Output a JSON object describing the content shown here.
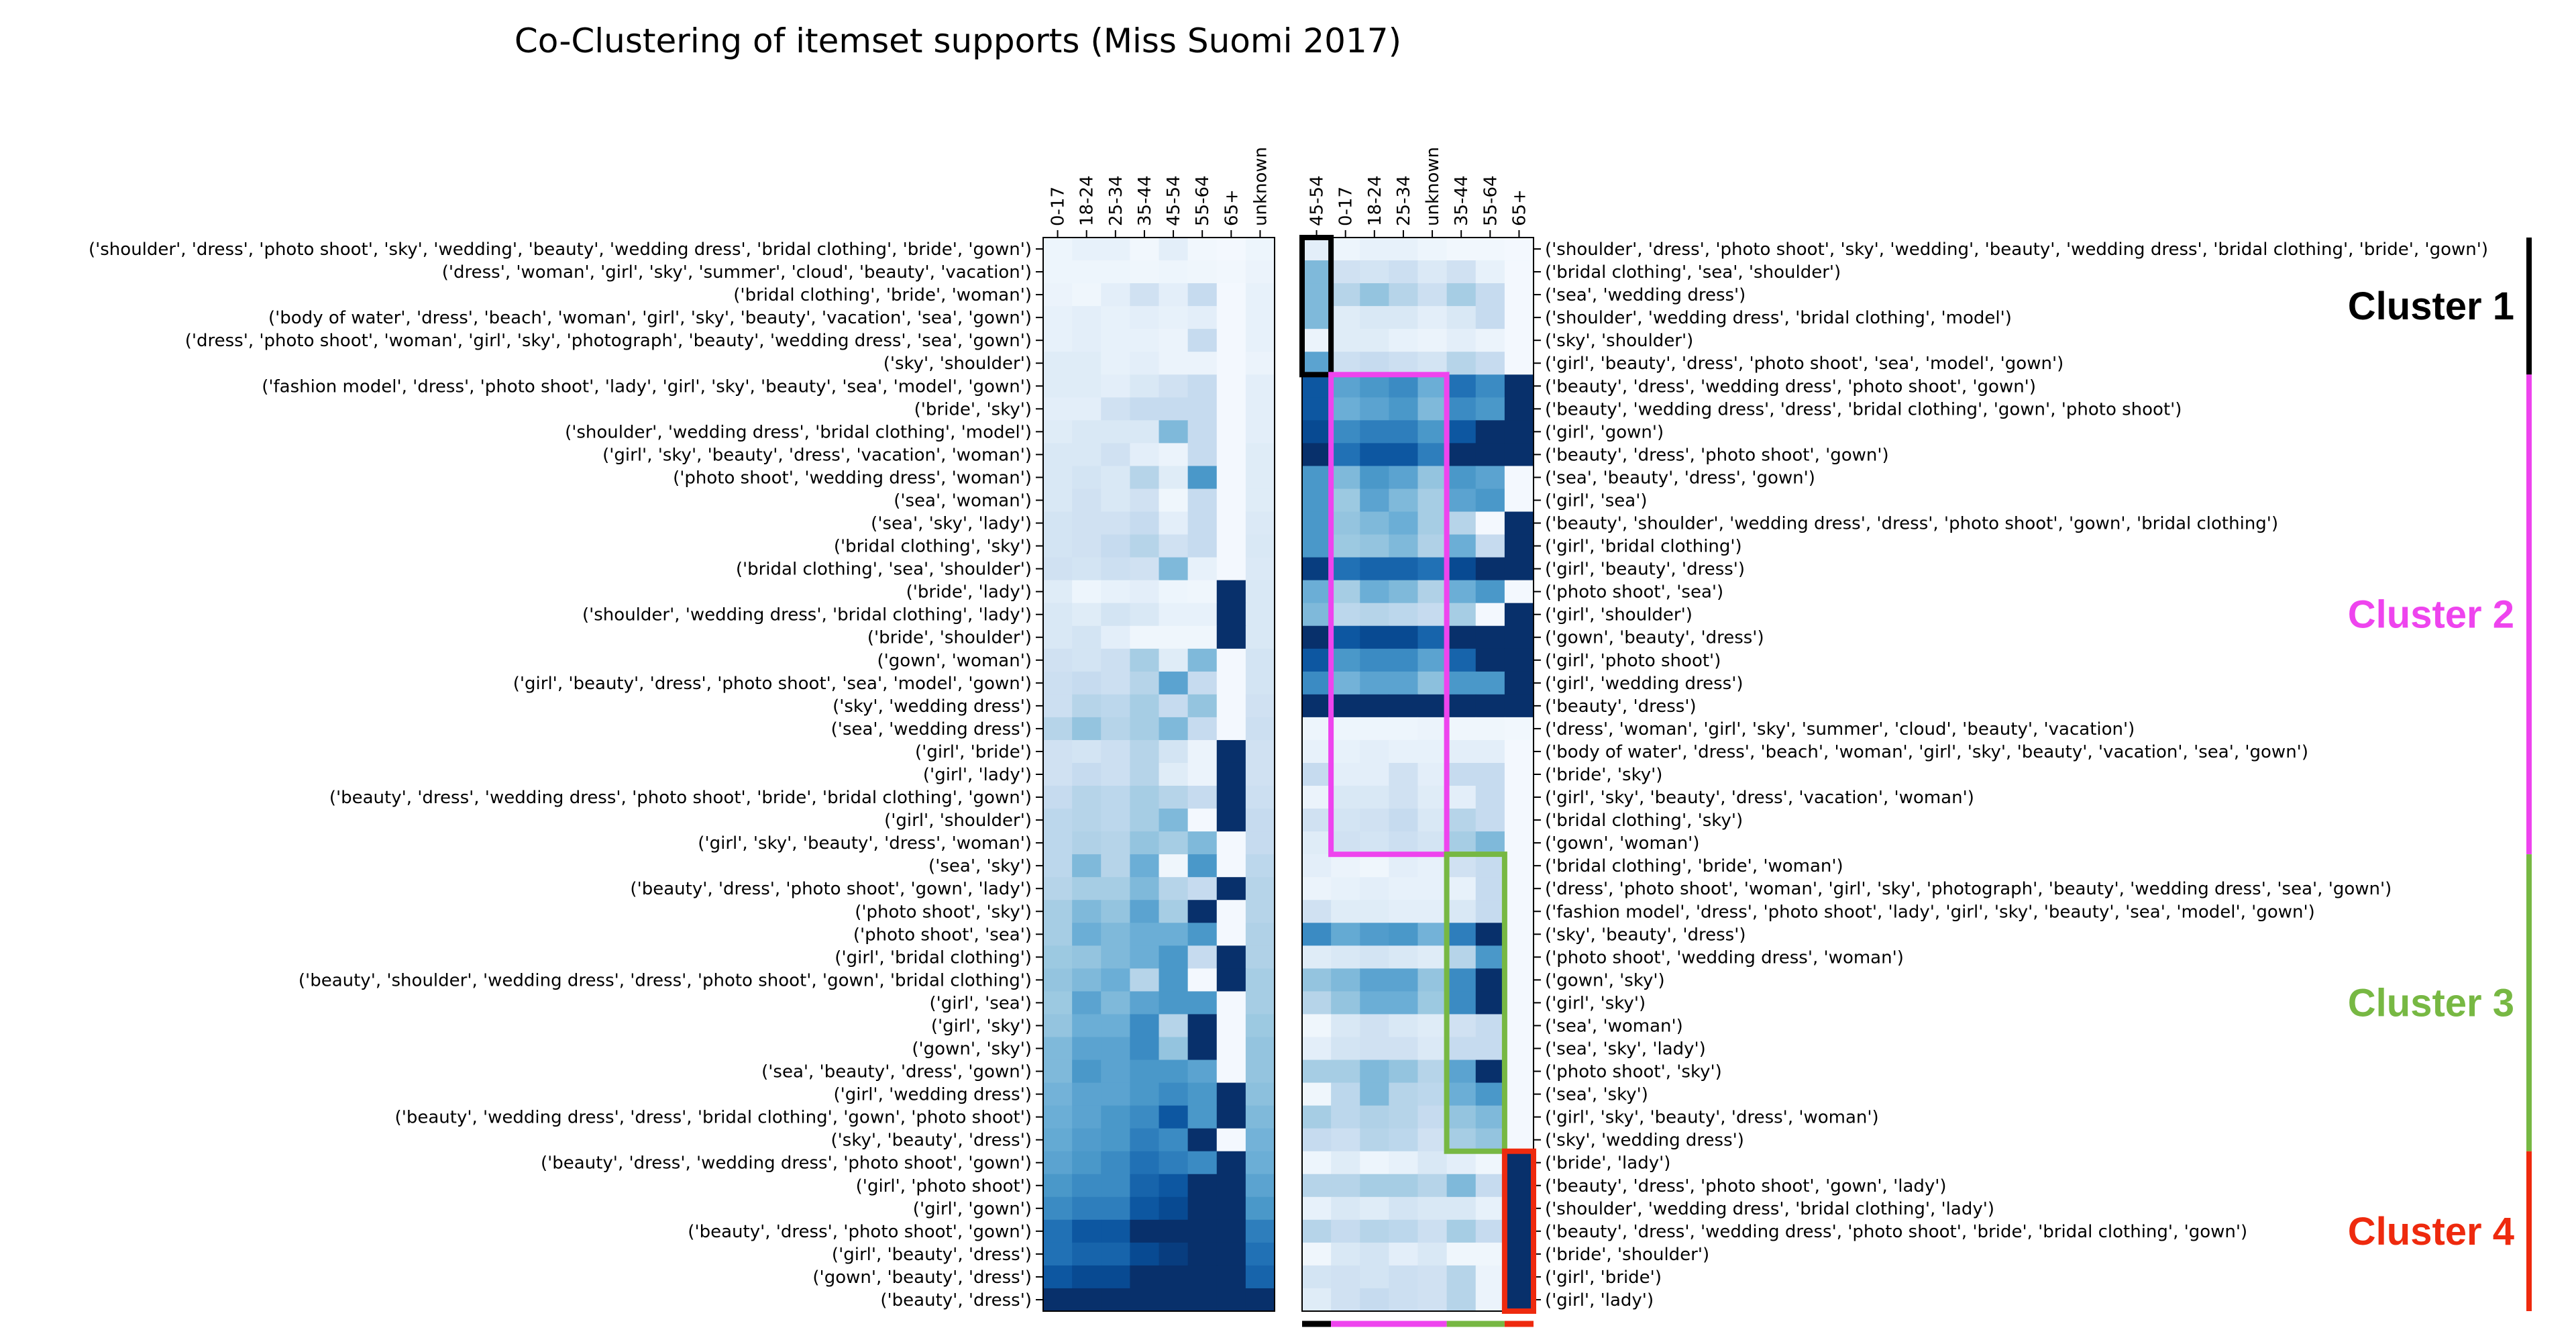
{
  "chart_data": {
    "type": "heatmap",
    "title": "Co-Clustering of itemset supports (Miss Suomi 2017)",
    "colormap": "Blues",
    "value_range": [
      0,
      1
    ],
    "left": {
      "columns": [
        "0-17",
        "18-24",
        "25-34",
        "35-44",
        "45-54",
        "55-64",
        "65+",
        "unknown"
      ],
      "rows": [
        "('shoulder', 'dress', 'photo shoot', 'sky', 'wedding', 'beauty', 'wedding dress', 'bridal clothing', 'bride', 'gown')",
        "('dress', 'woman', 'girl', 'sky', 'summer', 'cloud', 'beauty', 'vacation')",
        "('bridal clothing', 'bride', 'woman')",
        "('body of water', 'dress', 'beach', 'woman', 'girl', 'sky', 'beauty', 'vacation', 'sea', 'gown')",
        "('dress', 'photo shoot', 'woman', 'girl', 'sky', 'photograph', 'beauty', 'wedding dress', 'sea', 'gown')",
        "('sky', 'shoulder')",
        "('fashion model', 'dress', 'photo shoot', 'lady', 'girl', 'sky', 'beauty', 'sea', 'model', 'gown')",
        "('bride', 'sky')",
        "('shoulder', 'wedding dress', 'bridal clothing', 'model')",
        "('girl', 'sky', 'beauty', 'dress', 'vacation', 'woman')",
        "('photo shoot', 'wedding dress', 'woman')",
        "('sea', 'woman')",
        "('sea', 'sky', 'lady')",
        "('bridal clothing', 'sky')",
        "('bridal clothing', 'sea', 'shoulder')",
        "('bride', 'lady')",
        "('shoulder', 'wedding dress', 'bridal clothing', 'lady')",
        "('bride', 'shoulder')",
        "('gown', 'woman')",
        "('girl', 'beauty', 'dress', 'photo shoot', 'sea', 'model', 'gown')",
        "('sky', 'wedding dress')",
        "('sea', 'wedding dress')",
        "('girl', 'bride')",
        "('girl', 'lady')",
        "('beauty', 'dress', 'wedding dress', 'photo shoot', 'bride', 'bridal clothing', 'gown')",
        "('girl', 'shoulder')",
        "('girl', 'sky', 'beauty', 'dress', 'woman')",
        "('sea', 'sky')",
        "('beauty', 'dress', 'photo shoot', 'gown', 'lady')",
        "('photo shoot', 'sky')",
        "('photo shoot', 'sea')",
        "('girl', 'bridal clothing')",
        "('beauty', 'shoulder', 'wedding dress', 'dress', 'photo shoot', 'gown', 'bridal clothing')",
        "('girl', 'sea')",
        "('girl', 'sky')",
        "('gown', 'sky')",
        "('sea', 'beauty', 'dress', 'gown')",
        "('girl', 'wedding dress')",
        "('beauty', 'wedding dress', 'dress', 'bridal clothing', 'gown', 'photo shoot')",
        "('sky', 'beauty', 'dress')",
        "('beauty', 'dress', 'wedding dress', 'photo shoot', 'gown')",
        "('girl', 'photo shoot')",
        "('girl', 'gown')",
        "('beauty', 'dress', 'photo shoot', 'gown')",
        "('girl', 'beauty', 'dress')",
        "('gown', 'beauty', 'dress')",
        "('beauty', 'dress')"
      ],
      "values": [
        [
          0.05,
          0.08,
          0.08,
          0.03,
          0.1,
          0.03,
          0.02,
          0.05
        ],
        [
          0.05,
          0.05,
          0.05,
          0.04,
          0.05,
          0.04,
          0.03,
          0.06
        ],
        [
          0.06,
          0.04,
          0.1,
          0.2,
          0.1,
          0.25,
          0.02,
          0.08
        ],
        [
          0.08,
          0.1,
          0.08,
          0.1,
          0.08,
          0.1,
          0.02,
          0.08
        ],
        [
          0.08,
          0.1,
          0.08,
          0.08,
          0.06,
          0.25,
          0.02,
          0.08
        ],
        [
          0.12,
          0.12,
          0.08,
          0.1,
          0.06,
          0.06,
          0.02,
          0.06
        ],
        [
          0.12,
          0.12,
          0.1,
          0.15,
          0.2,
          0.25,
          0.02,
          0.1
        ],
        [
          0.1,
          0.1,
          0.2,
          0.25,
          0.25,
          0.25,
          0.02,
          0.1
        ],
        [
          0.12,
          0.15,
          0.15,
          0.15,
          0.45,
          0.25,
          0.02,
          0.1
        ],
        [
          0.15,
          0.15,
          0.2,
          0.1,
          0.06,
          0.25,
          0.02,
          0.12
        ],
        [
          0.15,
          0.18,
          0.15,
          0.3,
          0.12,
          0.6,
          0.02,
          0.12
        ],
        [
          0.15,
          0.2,
          0.15,
          0.2,
          0.04,
          0.25,
          0.02,
          0.12
        ],
        [
          0.18,
          0.2,
          0.2,
          0.25,
          0.1,
          0.25,
          0.02,
          0.14
        ],
        [
          0.18,
          0.2,
          0.25,
          0.3,
          0.2,
          0.25,
          0.02,
          0.15
        ],
        [
          0.2,
          0.18,
          0.22,
          0.2,
          0.45,
          0.08,
          0.02,
          0.14
        ],
        [
          0.12,
          0.05,
          0.08,
          0.1,
          0.05,
          0.04,
          1.0,
          0.15
        ],
        [
          0.15,
          0.12,
          0.18,
          0.15,
          0.08,
          0.08,
          1.0,
          0.15
        ],
        [
          0.15,
          0.18,
          0.1,
          0.04,
          0.04,
          0.04,
          1.0,
          0.15
        ],
        [
          0.2,
          0.18,
          0.22,
          0.35,
          0.12,
          0.45,
          0.02,
          0.18
        ],
        [
          0.22,
          0.25,
          0.22,
          0.3,
          0.55,
          0.25,
          0.02,
          0.18
        ],
        [
          0.22,
          0.3,
          0.28,
          0.35,
          0.25,
          0.4,
          0.02,
          0.2
        ],
        [
          0.3,
          0.4,
          0.3,
          0.35,
          0.45,
          0.25,
          0.02,
          0.22
        ],
        [
          0.2,
          0.18,
          0.22,
          0.3,
          0.18,
          0.06,
          1.0,
          0.2
        ],
        [
          0.2,
          0.25,
          0.22,
          0.3,
          0.12,
          0.06,
          1.0,
          0.2
        ],
        [
          0.25,
          0.3,
          0.28,
          0.35,
          0.3,
          0.25,
          1.0,
          0.22
        ],
        [
          0.28,
          0.3,
          0.28,
          0.35,
          0.45,
          0.02,
          1.0,
          0.25
        ],
        [
          0.28,
          0.32,
          0.3,
          0.4,
          0.35,
          0.45,
          0.02,
          0.25
        ],
        [
          0.28,
          0.45,
          0.3,
          0.5,
          0.04,
          0.6,
          0.02,
          0.28
        ],
        [
          0.3,
          0.35,
          0.35,
          0.45,
          0.3,
          0.25,
          1.0,
          0.3
        ],
        [
          0.35,
          0.45,
          0.4,
          0.55,
          0.35,
          1.0,
          0.02,
          0.3
        ],
        [
          0.35,
          0.5,
          0.45,
          0.5,
          0.5,
          0.6,
          0.02,
          0.32
        ],
        [
          0.38,
          0.4,
          0.45,
          0.5,
          0.6,
          0.25,
          1.0,
          0.32
        ],
        [
          0.4,
          0.45,
          0.5,
          0.3,
          0.6,
          0.02,
          1.0,
          0.35
        ],
        [
          0.38,
          0.55,
          0.45,
          0.55,
          0.6,
          0.6,
          0.02,
          0.35
        ],
        [
          0.4,
          0.5,
          0.5,
          0.65,
          0.3,
          1.0,
          0.02,
          0.38
        ],
        [
          0.45,
          0.55,
          0.55,
          0.65,
          0.4,
          1.0,
          0.02,
          0.4
        ],
        [
          0.45,
          0.6,
          0.55,
          0.6,
          0.6,
          0.55,
          0.02,
          0.4
        ],
        [
          0.48,
          0.55,
          0.55,
          0.6,
          0.65,
          0.6,
          1.0,
          0.42
        ],
        [
          0.5,
          0.55,
          0.6,
          0.65,
          0.85,
          0.6,
          1.0,
          0.45
        ],
        [
          0.52,
          0.58,
          0.6,
          0.7,
          0.65,
          1.0,
          0.02,
          0.48
        ],
        [
          0.55,
          0.6,
          0.65,
          0.75,
          0.7,
          0.65,
          1.0,
          0.5
        ],
        [
          0.6,
          0.65,
          0.65,
          0.8,
          0.85,
          1.0,
          1.0,
          0.55
        ],
        [
          0.65,
          0.7,
          0.7,
          0.85,
          0.9,
          1.0,
          1.0,
          0.6
        ],
        [
          0.75,
          0.85,
          0.85,
          1.0,
          1.0,
          1.0,
          1.0,
          0.7
        ],
        [
          0.75,
          0.8,
          0.8,
          0.9,
          0.95,
          1.0,
          1.0,
          0.75
        ],
        [
          0.85,
          0.9,
          0.9,
          1.0,
          1.0,
          1.0,
          1.0,
          0.8
        ],
        [
          1.0,
          1.0,
          1.0,
          1.0,
          1.0,
          1.0,
          1.0,
          1.0
        ]
      ]
    },
    "right": {
      "columns": [
        "45-54",
        "0-17",
        "18-24",
        "25-34",
        "unknown",
        "35-44",
        "55-64",
        "65+"
      ],
      "rows": [
        "('shoulder', 'dress', 'photo shoot', 'sky', 'wedding', 'beauty', 'wedding dress', 'bridal clothing', 'bride', 'gown')",
        "('bridal clothing', 'sea', 'shoulder')",
        "('sea', 'wedding dress')",
        "('shoulder', 'wedding dress', 'bridal clothing', 'model')",
        "('sky', 'shoulder')",
        "('girl', 'beauty', 'dress', 'photo shoot', 'sea', 'model', 'gown')",
        "('beauty', 'dress', 'wedding dress', 'photo shoot', 'gown')",
        "('beauty', 'wedding dress', 'dress', 'bridal clothing', 'gown', 'photo shoot')",
        "('girl', 'gown')",
        "('beauty', 'dress', 'photo shoot', 'gown')",
        "('sea', 'beauty', 'dress', 'gown')",
        "('girl', 'sea')",
        "('beauty', 'shoulder', 'wedding dress', 'dress', 'photo shoot', 'gown', 'bridal clothing')",
        "('girl', 'bridal clothing')",
        "('girl', 'beauty', 'dress')",
        "('photo shoot', 'sea')",
        "('girl', 'shoulder')",
        "('gown', 'beauty', 'dress')",
        "('girl', 'photo shoot')",
        "('girl', 'wedding dress')",
        "('beauty', 'dress')",
        "('dress', 'woman', 'girl', 'sky', 'summer', 'cloud', 'beauty', 'vacation')",
        "('body of water', 'dress', 'beach', 'woman', 'girl', 'sky', 'beauty', 'vacation', 'sea', 'gown')",
        "('bride', 'sky')",
        "('girl', 'sky', 'beauty', 'dress', 'vacation', 'woman')",
        "('bridal clothing', 'sky')",
        "('gown', 'woman')",
        "('bridal clothing', 'bride', 'woman')",
        "('dress', 'photo shoot', 'woman', 'girl', 'sky', 'photograph', 'beauty', 'wedding dress', 'sea', 'gown')",
        "('fashion model', 'dress', 'photo shoot', 'lady', 'girl', 'sky', 'beauty', 'sea', 'model', 'gown')",
        "('sky', 'beauty', 'dress')",
        "('photo shoot', 'wedding dress', 'woman')",
        "('gown', 'sky')",
        "('girl', 'sky')",
        "('sea', 'woman')",
        "('sea', 'sky', 'lady')",
        "('photo shoot', 'sky')",
        "('sea', 'sky')",
        "('girl', 'sky', 'beauty', 'dress', 'woman')",
        "('sky', 'wedding dress')",
        "('bride', 'lady')",
        "('beauty', 'dress', 'photo shoot', 'gown', 'lady')",
        "('shoulder', 'wedding dress', 'bridal clothing', 'lady')",
        "('beauty', 'dress', 'wedding dress', 'photo shoot', 'bride', 'bridal clothing', 'gown')",
        "('bride', 'shoulder')",
        "('girl', 'bride')",
        "('girl', 'lady')"
      ],
      "values": [
        [
          0.1,
          0.05,
          0.08,
          0.08,
          0.05,
          0.03,
          0.03,
          0.02
        ],
        [
          0.45,
          0.2,
          0.18,
          0.22,
          0.14,
          0.2,
          0.08,
          0.02
        ],
        [
          0.45,
          0.3,
          0.4,
          0.3,
          0.22,
          0.35,
          0.25,
          0.02
        ],
        [
          0.45,
          0.12,
          0.15,
          0.15,
          0.1,
          0.15,
          0.25,
          0.02
        ],
        [
          0.06,
          0.12,
          0.12,
          0.08,
          0.06,
          0.1,
          0.06,
          0.02
        ],
        [
          0.55,
          0.22,
          0.25,
          0.22,
          0.18,
          0.3,
          0.25,
          0.02
        ],
        [
          0.85,
          0.55,
          0.6,
          0.65,
          0.5,
          0.75,
          0.65,
          1.0
        ],
        [
          0.85,
          0.5,
          0.55,
          0.6,
          0.45,
          0.65,
          0.6,
          1.0
        ],
        [
          0.9,
          0.65,
          0.7,
          0.7,
          0.6,
          0.85,
          1.0,
          1.0
        ],
        [
          1.0,
          0.75,
          0.85,
          0.85,
          0.7,
          1.0,
          1.0,
          1.0
        ],
        [
          0.6,
          0.45,
          0.6,
          0.55,
          0.4,
          0.6,
          0.55,
          0.02
        ],
        [
          0.6,
          0.38,
          0.55,
          0.45,
          0.35,
          0.55,
          0.6,
          0.02
        ],
        [
          0.6,
          0.4,
          0.45,
          0.5,
          0.35,
          0.3,
          0.02,
          1.0
        ],
        [
          0.6,
          0.38,
          0.4,
          0.45,
          0.32,
          0.5,
          0.25,
          1.0
        ],
        [
          0.95,
          0.75,
          0.8,
          0.8,
          0.75,
          0.9,
          1.0,
          1.0
        ],
        [
          0.5,
          0.35,
          0.5,
          0.45,
          0.32,
          0.5,
          0.6,
          0.02
        ],
        [
          0.45,
          0.28,
          0.3,
          0.28,
          0.25,
          0.35,
          0.02,
          1.0
        ],
        [
          1.0,
          0.85,
          0.9,
          0.9,
          0.8,
          1.0,
          1.0,
          1.0
        ],
        [
          0.85,
          0.6,
          0.65,
          0.65,
          0.55,
          0.8,
          1.0,
          1.0
        ],
        [
          0.65,
          0.48,
          0.55,
          0.55,
          0.42,
          0.6,
          0.6,
          1.0
        ],
        [
          1.0,
          1.0,
          1.0,
          1.0,
          1.0,
          1.0,
          1.0,
          1.0
        ],
        [
          0.05,
          0.05,
          0.05,
          0.05,
          0.06,
          0.04,
          0.04,
          0.03
        ],
        [
          0.08,
          0.08,
          0.1,
          0.08,
          0.08,
          0.1,
          0.1,
          0.02
        ],
        [
          0.25,
          0.1,
          0.1,
          0.2,
          0.1,
          0.25,
          0.25,
          0.02
        ],
        [
          0.06,
          0.15,
          0.15,
          0.2,
          0.12,
          0.1,
          0.25,
          0.02
        ],
        [
          0.2,
          0.18,
          0.2,
          0.25,
          0.15,
          0.3,
          0.25,
          0.02
        ],
        [
          0.12,
          0.2,
          0.18,
          0.22,
          0.18,
          0.35,
          0.45,
          0.02
        ],
        [
          0.1,
          0.06,
          0.04,
          0.1,
          0.08,
          0.2,
          0.25,
          0.02
        ],
        [
          0.06,
          0.08,
          0.1,
          0.08,
          0.08,
          0.08,
          0.25,
          0.02
        ],
        [
          0.2,
          0.12,
          0.12,
          0.1,
          0.1,
          0.15,
          0.25,
          0.02
        ],
        [
          0.65,
          0.52,
          0.58,
          0.6,
          0.48,
          0.7,
          1.0,
          0.02
        ],
        [
          0.12,
          0.15,
          0.18,
          0.15,
          0.12,
          0.3,
          0.6,
          0.02
        ],
        [
          0.4,
          0.45,
          0.55,
          0.55,
          0.4,
          0.65,
          1.0,
          0.02
        ],
        [
          0.3,
          0.4,
          0.5,
          0.5,
          0.38,
          0.65,
          1.0,
          0.02
        ],
        [
          0.04,
          0.15,
          0.2,
          0.15,
          0.12,
          0.2,
          0.25,
          0.02
        ],
        [
          0.1,
          0.18,
          0.2,
          0.2,
          0.14,
          0.25,
          0.25,
          0.02
        ],
        [
          0.35,
          0.35,
          0.45,
          0.4,
          0.3,
          0.55,
          1.0,
          0.02
        ],
        [
          0.04,
          0.28,
          0.45,
          0.3,
          0.28,
          0.5,
          0.6,
          0.02
        ],
        [
          0.35,
          0.28,
          0.32,
          0.3,
          0.25,
          0.4,
          0.45,
          0.02
        ],
        [
          0.25,
          0.22,
          0.3,
          0.28,
          0.2,
          0.35,
          0.4,
          0.02
        ],
        [
          0.05,
          0.12,
          0.05,
          0.08,
          0.15,
          0.1,
          0.04,
          1.0
        ],
        [
          0.3,
          0.3,
          0.35,
          0.35,
          0.3,
          0.45,
          0.25,
          1.0
        ],
        [
          0.08,
          0.15,
          0.12,
          0.18,
          0.15,
          0.15,
          0.08,
          1.0
        ],
        [
          0.3,
          0.25,
          0.3,
          0.28,
          0.22,
          0.35,
          0.25,
          1.0
        ],
        [
          0.04,
          0.15,
          0.18,
          0.1,
          0.15,
          0.04,
          0.04,
          1.0
        ],
        [
          0.18,
          0.2,
          0.18,
          0.22,
          0.2,
          0.3,
          0.06,
          1.0
        ],
        [
          0.12,
          0.2,
          0.25,
          0.22,
          0.2,
          0.3,
          0.06,
          1.0
        ]
      ]
    },
    "clusters": [
      {
        "name": "Cluster 1",
        "color": "#000000",
        "rows": [
          0,
          5
        ],
        "cols": [
          0,
          0
        ]
      },
      {
        "name": "Cluster 2",
        "color": "#ee44ee",
        "rows": [
          6,
          26
        ],
        "cols": [
          1,
          4
        ]
      },
      {
        "name": "Cluster 3",
        "color": "#77b843",
        "rows": [
          27,
          39
        ],
        "cols": [
          5,
          6
        ]
      },
      {
        "name": "Cluster 4",
        "color": "#ee2a0e",
        "rows": [
          40,
          46
        ],
        "cols": [
          7,
          7
        ]
      }
    ]
  }
}
